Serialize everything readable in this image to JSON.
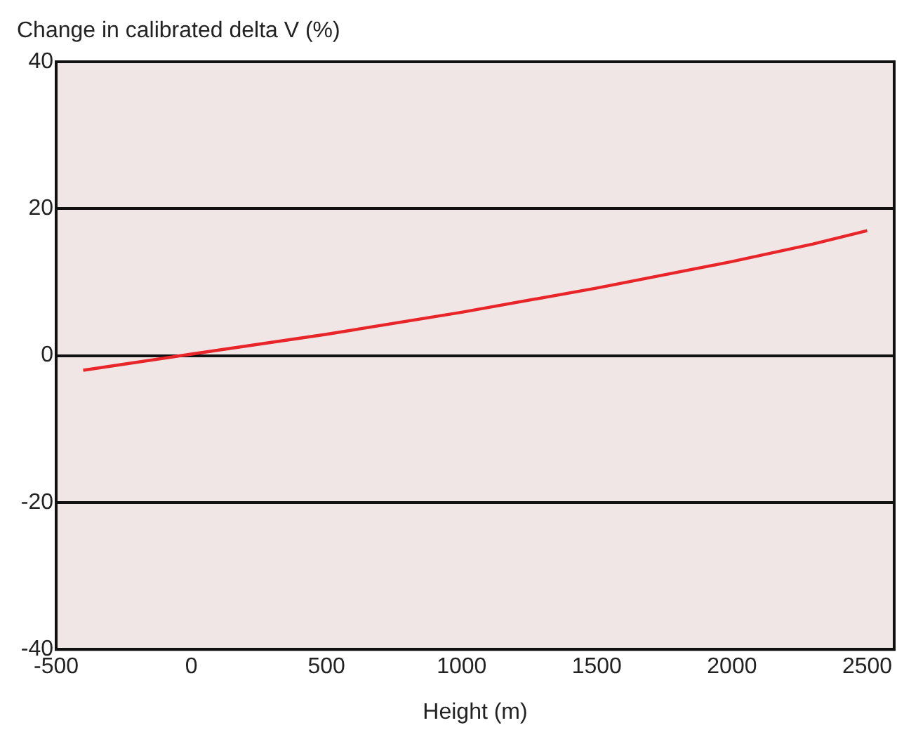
{
  "chart_data": {
    "type": "line",
    "ylabel": "Change in calibrated delta V (%)",
    "xlabel": "Height (m)",
    "x": [
      -400,
      0,
      500,
      1000,
      1500,
      2000,
      2300,
      2500
    ],
    "series": [
      {
        "color": "#e8262a",
        "values": [
          -2,
          0.2,
          2.9,
          5.9,
          9.2,
          12.8,
          15.2,
          17
        ]
      }
    ],
    "xlim": [
      -500,
      2600
    ],
    "xticks": [
      -500,
      0,
      500,
      1000,
      1500,
      2000,
      2500
    ],
    "ylim": [
      -40,
      40
    ],
    "yticks": [
      -40,
      -20,
      0,
      20,
      40
    ],
    "grid": "y",
    "legend": false,
    "marker": "none",
    "line_style": "solid"
  }
}
